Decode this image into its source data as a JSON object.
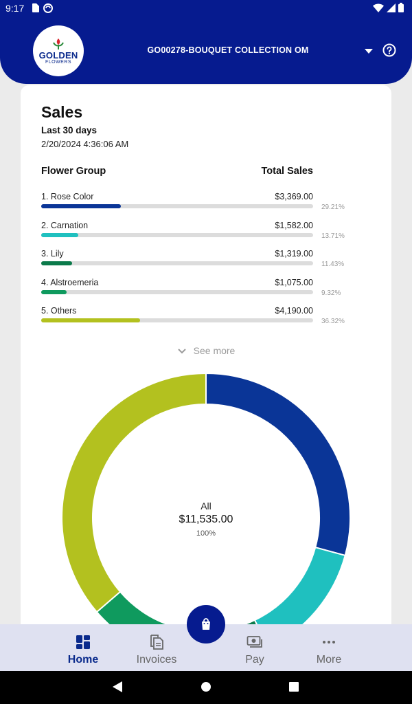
{
  "status_bar": {
    "time": "9:17"
  },
  "header": {
    "logo": {
      "line1": "GOLDEN",
      "line2": "FLOWERS"
    },
    "account": "GO00278-BOUQUET COLLECTION OM",
    "icons": {
      "dropdown": "chevron-down-icon",
      "help": "help-circle-icon"
    }
  },
  "sales": {
    "title": "Sales",
    "period": "Last 30 days",
    "timestamp": "2/20/2024 4:36:06 AM",
    "col_left": "Flower Group",
    "col_right": "Total Sales",
    "rows": [
      {
        "label": "1. Rose Color",
        "amount": "$3,369.00",
        "pct": "29.21%",
        "value": 29.21,
        "color": "#0a3597"
      },
      {
        "label": "2. Carnation",
        "amount": "$1,582.00",
        "pct": "13.71%",
        "value": 13.71,
        "color": "#1fc0bf"
      },
      {
        "label": "3. Lily",
        "amount": "$1,319.00",
        "pct": "11.43%",
        "value": 11.43,
        "color": "#0b7a4a"
      },
      {
        "label": "4. Alstroemeria",
        "amount": "$1,075.00",
        "pct": "9.32%",
        "value": 9.32,
        "color": "#0f9a5e"
      },
      {
        "label": "5. Others",
        "amount": "$4,190.00",
        "pct": "36.32%",
        "value": 36.32,
        "color": "#b3c11f"
      }
    ],
    "see_more": "See more",
    "donut": {
      "label": "All",
      "total": "$11,535.00",
      "pct": "100%"
    }
  },
  "bottom_nav": {
    "items": [
      {
        "label": "Home",
        "icon": "dashboard-icon",
        "active": true
      },
      {
        "label": "Invoices",
        "icon": "documents-icon",
        "active": false
      },
      {
        "label": "Pay",
        "icon": "payments-icon",
        "active": false
      },
      {
        "label": "More",
        "icon": "more-horizontal-icon",
        "active": false
      }
    ],
    "fab_icon": "shopping-bag-icon"
  }
}
